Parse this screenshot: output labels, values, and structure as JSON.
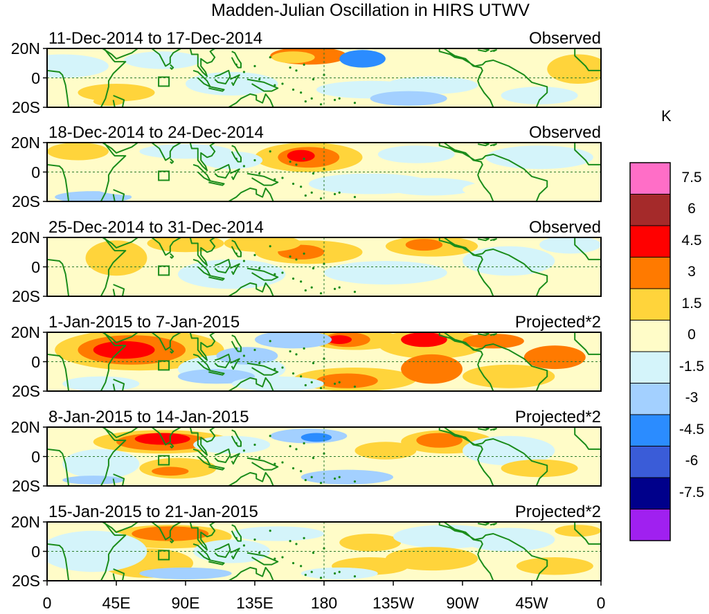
{
  "title": "Madden-Julian Oscillation in HIRS UTWV",
  "panels": [
    {
      "date_range": "11-Dec-2014 to 17-Dec-2014",
      "type": "Observed"
    },
    {
      "date_range": "18-Dec-2014 to 24-Dec-2014",
      "type": "Observed"
    },
    {
      "date_range": "25-Dec-2014 to 31-Dec-2014",
      "type": "Observed"
    },
    {
      "date_range": "1-Jan-2015 to 7-Jan-2015",
      "type": "Projected*2"
    },
    {
      "date_range": "8-Jan-2015 to 14-Jan-2015",
      "type": "Projected*2"
    },
    {
      "date_range": "15-Jan-2015 to 21-Jan-2015",
      "type": "Projected*2"
    }
  ],
  "lat_labels": [
    "20N",
    "0",
    "20S"
  ],
  "lon_labels": [
    "0",
    "45E",
    "90E",
    "135E",
    "180",
    "135W",
    "90W",
    "45W",
    "0"
  ],
  "colorbar": {
    "unit": "K",
    "levels": [
      "7.5",
      "6",
      "4.5",
      "3",
      "1.5",
      "0",
      "-1.5",
      "-3",
      "-4.5",
      "-6",
      "-7.5"
    ],
    "colors": [
      "#ff6ec7",
      "#a52a2a",
      "#ff0000",
      "#ff7a00",
      "#ffd43b",
      "#fffcc8",
      "#d4f4fa",
      "#a3d0ff",
      "#2b8cff",
      "#3a5cd8",
      "#00008b",
      "#a020f0"
    ]
  },
  "colors": {
    "land": "#1a8c1a",
    "grid": "#2a7a2a"
  }
}
